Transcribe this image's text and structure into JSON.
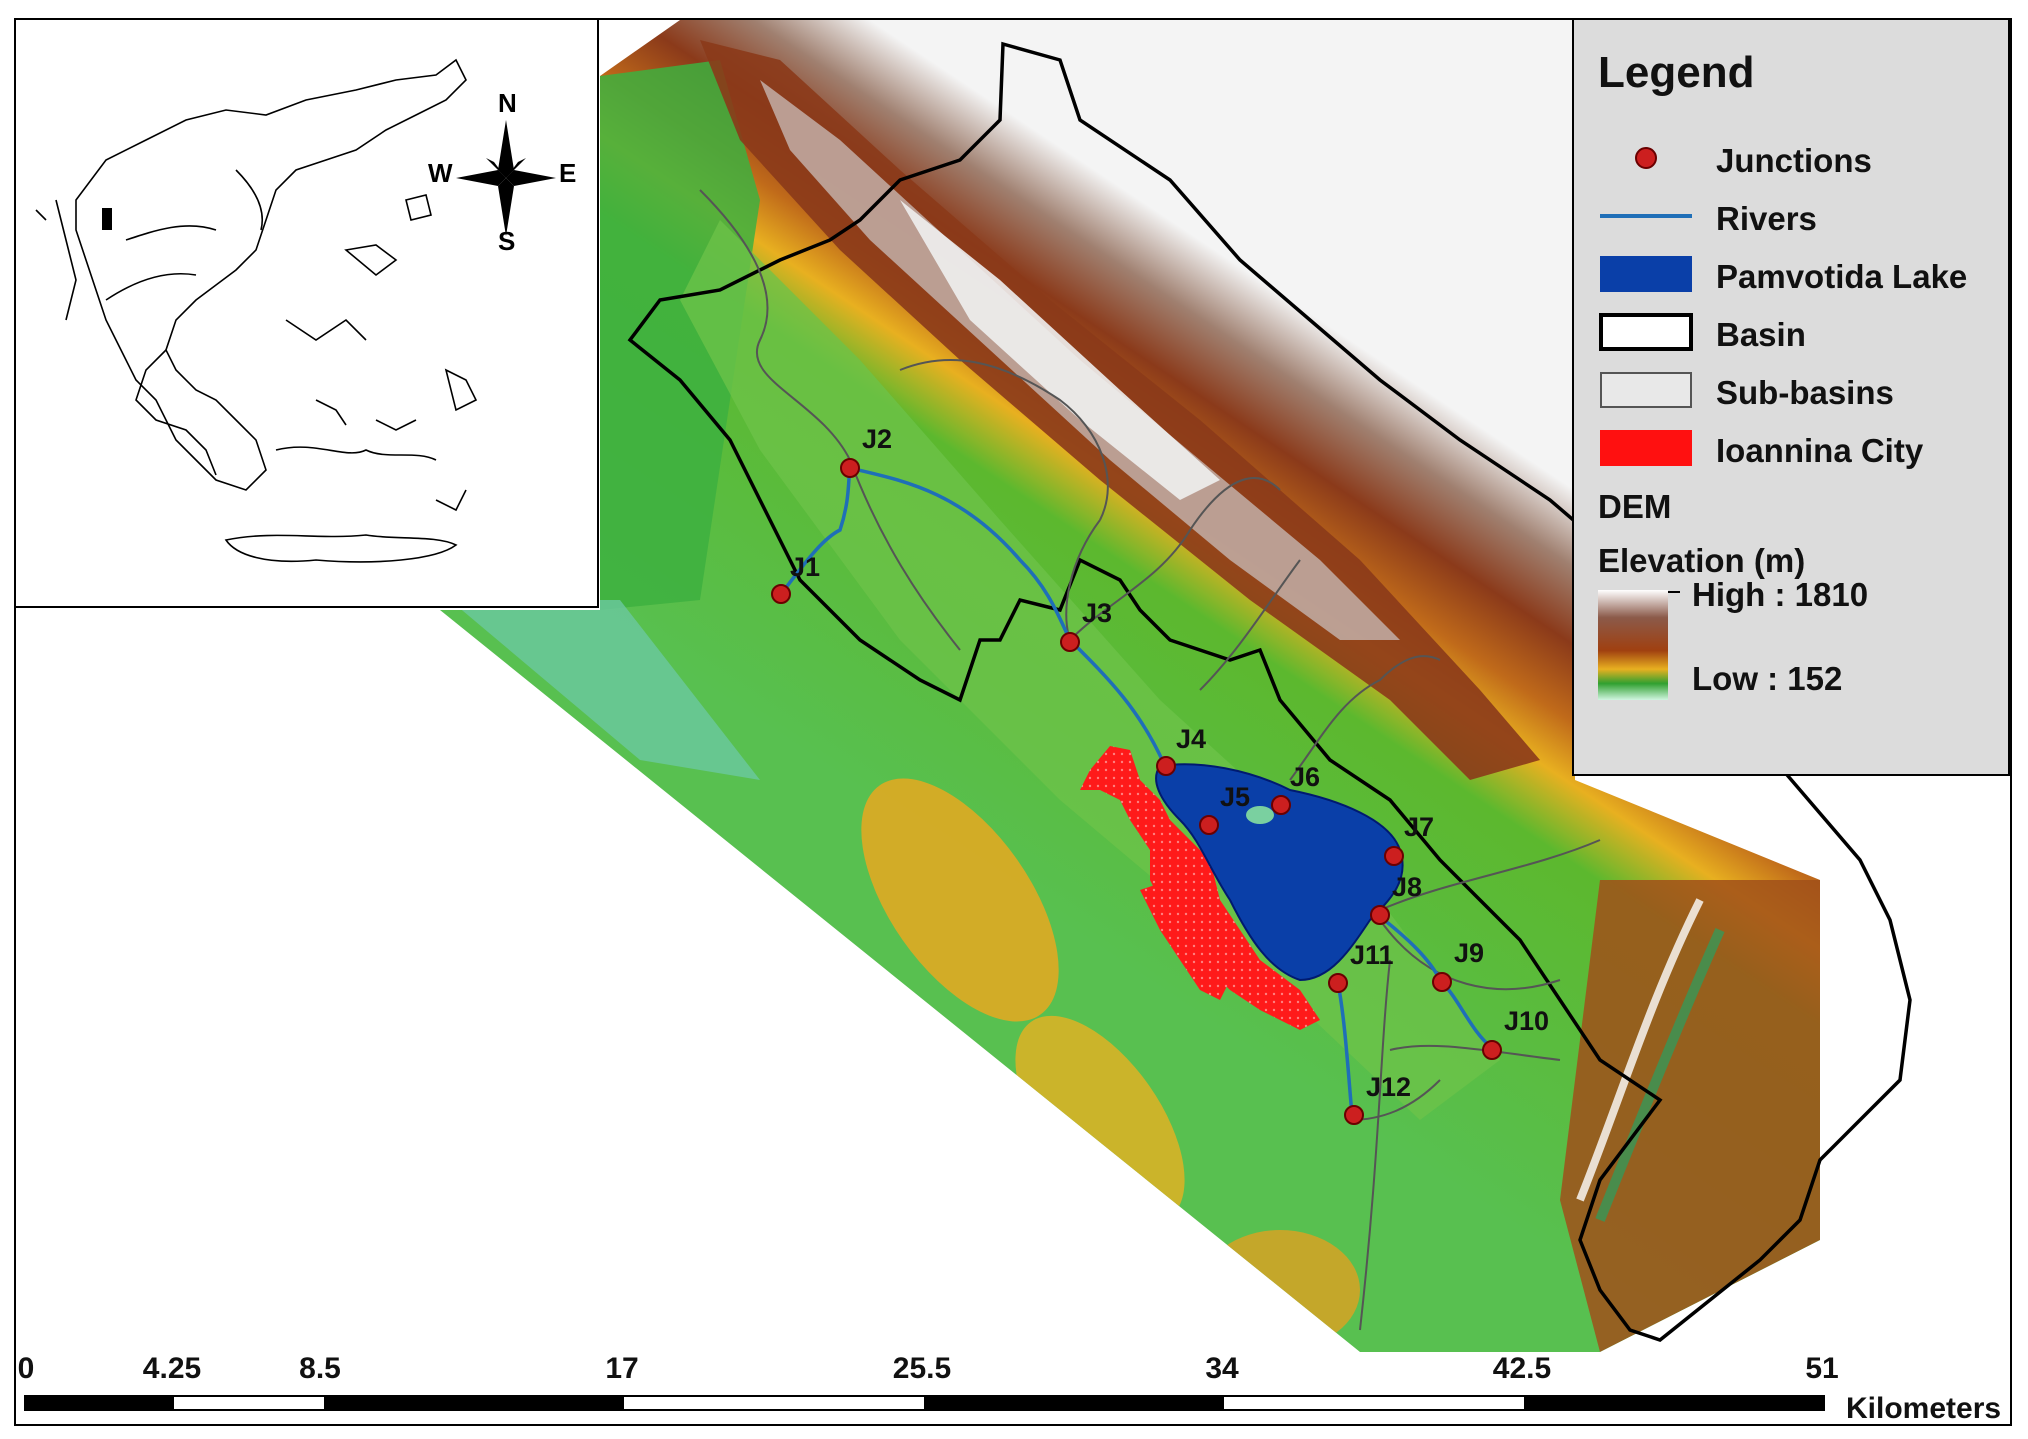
{
  "legend": {
    "title": "Legend",
    "items": [
      {
        "label": "Junctions",
        "symbol": "junction-dot"
      },
      {
        "label": "Rivers",
        "symbol": "river-line"
      },
      {
        "label": "Pamvotida Lake",
        "symbol": "lake-fill"
      },
      {
        "label": "Basin",
        "symbol": "basin-outline"
      },
      {
        "label": "Sub-basins",
        "symbol": "subbasin-outline"
      },
      {
        "label": "Ioannina City",
        "symbol": "city-fill"
      }
    ],
    "dem_heading": "DEM",
    "elevation_heading": "Elevation (m)",
    "high_label": "High : 1810",
    "low_label": "Low : 152"
  },
  "colors": {
    "junction": "#cc1f1f",
    "river": "#1f6fb8",
    "lake": "#0a3fa8",
    "city": "#ff1010",
    "basin": "#000000",
    "subbasin": "#555555",
    "dem_high": "#ffffff",
    "dem_mid_high": "#8b3a1a",
    "dem_mid": "#e8b020",
    "dem_low_mid": "#30a030",
    "dem_low": "#d0f5e0"
  },
  "compass": {
    "n": "N",
    "s": "S",
    "e": "E",
    "w": "W"
  },
  "junctions": [
    "J1",
    "J2",
    "J3",
    "J4",
    "J5",
    "J6",
    "J7",
    "J8",
    "J9",
    "J10",
    "J11",
    "J12"
  ],
  "scale": {
    "ticks": [
      "0",
      "4.25",
      "8.5",
      "17",
      "25.5",
      "34",
      "42.5",
      "51"
    ],
    "unit": "Kilometers"
  }
}
